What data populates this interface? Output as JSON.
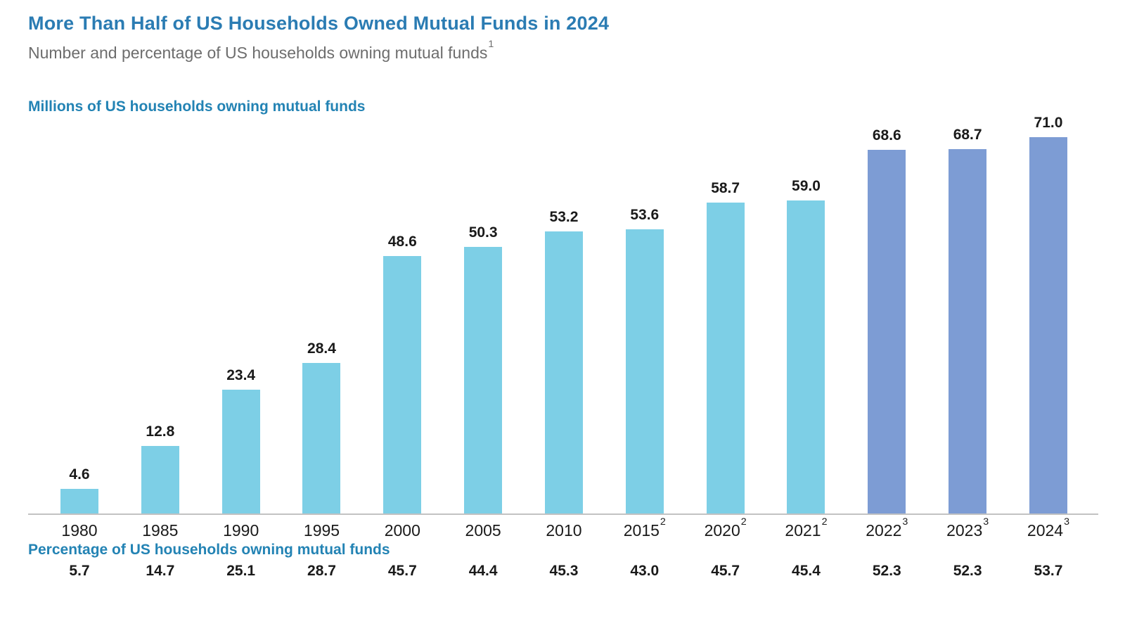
{
  "title": "More Than Half of US Households Owned Mutual Funds in 2024",
  "subtitle": "Number and percentage of US households owning mutual funds",
  "subtitle_superscript": "1",
  "axis_label_top": "Millions of US households owning mutual funds",
  "axis_label_bottom": "Percentage of US households owning mutual funds",
  "colors": {
    "title_blue": "#2B7CB3",
    "section_label_blue": "#2383B4",
    "bar_light": "#7DCFE6",
    "bar_dark": "#7D9CD4",
    "axis_line_gray": "#C2C2C2",
    "value_text": "#1A1A1A",
    "subtitle_gray": "#6D6D6D"
  },
  "chart_data": {
    "type": "bar",
    "title": "More Than Half of US Households Owned Mutual Funds in 2024",
    "subtitle": "Number and percentage of US households owning mutual funds",
    "categories": [
      "1980",
      "1985",
      "1990",
      "1995",
      "2000",
      "2005",
      "2010",
      "2015",
      "2020",
      "2021",
      "2022",
      "2023",
      "2024"
    ],
    "category_superscripts": [
      "",
      "",
      "",
      "",
      "",
      "",
      "",
      "2",
      "2",
      "2",
      "3",
      "3",
      "3"
    ],
    "series": [
      {
        "name": "Millions of US households owning mutual funds",
        "values": [
          4.6,
          12.8,
          23.4,
          28.4,
          48.6,
          50.3,
          53.2,
          53.6,
          58.7,
          59.0,
          68.6,
          68.7,
          71.0
        ]
      },
      {
        "name": "Percentage of US households owning mutual funds",
        "values": [
          5.7,
          14.7,
          25.1,
          28.7,
          45.7,
          44.4,
          45.3,
          43.0,
          45.7,
          45.4,
          52.3,
          52.3,
          53.7
        ]
      }
    ],
    "ylim": [
      0,
      71
    ],
    "grid": false,
    "legend": "none",
    "highlight_from_index": 10,
    "highlight_note": "Bars from 2022 onward use the darker slate-blue color"
  }
}
